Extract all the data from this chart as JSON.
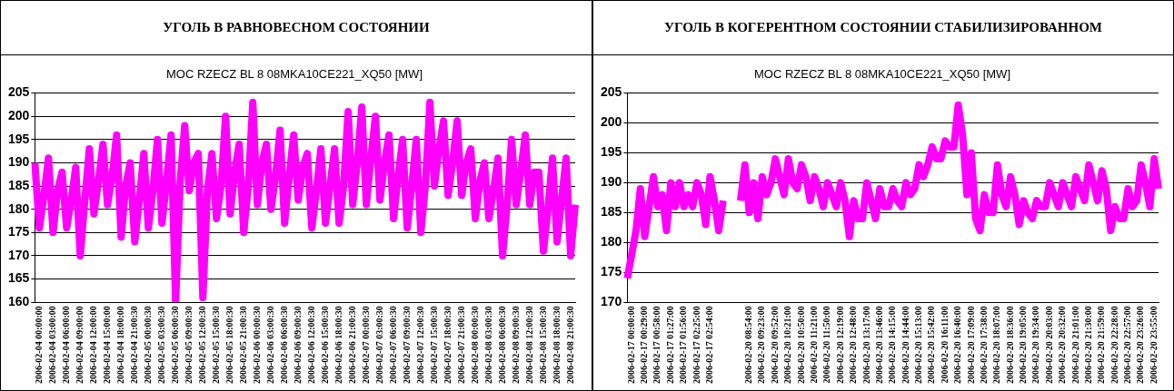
{
  "chart_data": [
    {
      "type": "line",
      "title": "УГОЛЬ В РАВНОВЕСНОМ СОСТОЯНИИ",
      "subtitle": "MOC RZECZ BL 8 08MKA10CE221_XQ50 [MW]",
      "categories": [
        null,
        "2006-02-04 00:00:00",
        null,
        null,
        "2006-02-04 03:00:00",
        null,
        null,
        "2006-02-04 06:00:00",
        null,
        null,
        "2006-02-04 09:00:00",
        null,
        null,
        "2006-02-04 12:00:00",
        null,
        null,
        "2006-02-04 15:00:00",
        null,
        null,
        "2006-02-04 18:00:00",
        null,
        null,
        "2006-02-04 21:00:30",
        null,
        null,
        "2006-02-05 00:00:30",
        null,
        null,
        "2006-02-05 03:00:30",
        null,
        null,
        "2006-02-05 06:00:30",
        null,
        null,
        "2006-02-05 09:00:30",
        null,
        null,
        "2006-02-05 12:00:30",
        null,
        null,
        "2006-02-05 15:00:30",
        null,
        null,
        "2006-02-05 18:00:30",
        null,
        null,
        "2006-02-05 21:00:30",
        null,
        null,
        "2006-02-06 00:00:30",
        null,
        null,
        "2006-02-06 03:00:30",
        null,
        null,
        "2006-02-06 06:00:30",
        null,
        null,
        "2006-02-06 09:00:30",
        null,
        null,
        "2006-02-06 12:00:30",
        null,
        null,
        "2006-02-06 15:00:30",
        null,
        null,
        "2006-02-06 18:00:30",
        null,
        null,
        "2006-02-06 21:00:30",
        null,
        null,
        "2006-02-07 00:00:30",
        null,
        null,
        "2006-02-07 03:00:30",
        null,
        null,
        "2006-02-07 06:00:30",
        null,
        null,
        "2006-02-07 09:00:30",
        null,
        null,
        "2006-02-07 12:00:30",
        null,
        null,
        "2006-02-07 15:00:30",
        null,
        null,
        "2006-02-07 18:00:30",
        null,
        null,
        "2006-02-07 21:00:30",
        null,
        null,
        "2006-02-08 00:00:30",
        null,
        null,
        "2006-02-08 03:00:30",
        null,
        null,
        "2006-02-08 06:00:30",
        null,
        null,
        "2006-02-08 09:00:30",
        null,
        null,
        "2006-02-08 12:00:30",
        null,
        null,
        "2006-02-08 15:00:30",
        null,
        null,
        "2006-02-08 18:00:30",
        null,
        null,
        "2006-02-08 21:00:30",
        null
      ],
      "series": [
        {
          "color": "#ff00ff",
          "values": [
            190,
            176,
            183,
            191,
            175,
            184,
            188,
            176,
            182,
            189,
            170,
            182,
            193,
            179,
            186,
            194,
            181,
            187,
            196,
            174,
            185,
            190,
            173,
            182,
            192,
            176,
            184,
            195,
            177,
            186,
            196,
            160,
            186,
            198,
            184,
            190,
            192,
            161,
            184,
            192,
            178,
            185,
            200,
            179,
            188,
            194,
            175,
            185,
            203,
            181,
            190,
            194,
            180,
            187,
            197,
            177,
            187,
            196,
            182,
            189,
            192,
            176,
            184,
            193,
            177,
            185,
            193,
            177,
            185,
            201,
            181,
            190,
            202,
            181,
            191,
            200,
            182,
            190,
            196,
            178,
            187,
            195,
            176,
            185,
            195,
            175,
            185,
            203,
            185,
            193,
            199,
            183,
            190,
            199,
            183,
            190,
            193,
            178,
            186,
            190,
            178,
            184,
            191,
            170,
            181,
            195,
            181,
            188,
            196,
            181,
            188,
            188,
            171,
            180,
            191,
            173,
            182,
            191,
            170,
            181
          ]
        }
      ],
      "ylim": [
        160,
        205
      ],
      "yticks": [
        160,
        165,
        170,
        175,
        180,
        185,
        190,
        195,
        200,
        205
      ],
      "grid": "y",
      "legend": false,
      "marker": "none"
    },
    {
      "type": "line",
      "title": "УГОЛЬ В КОГЕРЕНТНОМ СОСТОЯНИИ СТАБИЛИЗИРОВАННОМ",
      "subtitle": "MOC RZECZ BL 8 08MKA10CE221_XQ50 [MW]",
      "categories": [
        null,
        "2006-02-17 00:00:00",
        null,
        null,
        "2006-02-17 00:29:00",
        null,
        null,
        "2006-02-17 00:58:00",
        null,
        null,
        "2006-02-17 01:27:00",
        null,
        null,
        "2006-02-17 01:56:00",
        null,
        null,
        "2006-02-17 02:25:00",
        null,
        null,
        "2006-02-17 02:54:00",
        null,
        null,
        null,
        null,
        null,
        null,
        null,
        null,
        "2006-02-20 08:54:00",
        null,
        null,
        "2006-02-20 09:23:00",
        null,
        null,
        "2006-02-20 09:52:00",
        null,
        null,
        "2006-02-20 10:21:00",
        null,
        null,
        "2006-02-20 10:50:00",
        null,
        null,
        "2006-02-20 11:21:00",
        null,
        null,
        "2006-02-20 11:50:00",
        null,
        null,
        "2006-02-20 12:19:00",
        null,
        null,
        "2006-02-20 12:48:00",
        null,
        null,
        "2006-02-20 13:17:00",
        null,
        null,
        "2006-02-20 13:46:00",
        null,
        null,
        "2006-02-20 14:15:00",
        null,
        null,
        "2006-02-20 14:44:00",
        null,
        null,
        "2006-02-20 15:13:00",
        null,
        null,
        "2006-02-20 15:42:00",
        null,
        null,
        "2006-02-20 16:11:00",
        null,
        null,
        "2006-02-20 16:40:00",
        null,
        null,
        "2006-02-20 17:09:00",
        null,
        null,
        "2006-02-20 17:38:00",
        null,
        null,
        "2006-02-20 18:07:00",
        null,
        null,
        "2006-02-20 18:36:00",
        null,
        null,
        "2006-02-20 19:05:00",
        null,
        null,
        "2006-02-20 19:34:00",
        null,
        null,
        "2006-02-20 20:03:00",
        null,
        null,
        "2006-02-20 20:32:00",
        null,
        null,
        "2006-02-20 21:01:00",
        null,
        null,
        "2006-02-20 21:30:00",
        null,
        null,
        "2006-02-20 21:59:00",
        null,
        null,
        "2006-02-20 22:28:00",
        null,
        null,
        "2006-02-20 22:57:00",
        null,
        null,
        "2006-02-20 23:26:00",
        null,
        null,
        "2006-02-20 23:55:00",
        null
      ],
      "series": [
        {
          "color": "#ff00ff",
          "values": [
            174,
            178,
            182,
            189,
            181,
            186,
            191,
            186,
            188,
            182,
            190,
            186,
            190,
            186,
            188,
            186,
            190,
            188,
            183,
            191,
            187,
            182,
            187,
            null,
            null,
            null,
            187,
            193,
            185,
            190,
            184,
            191,
            188,
            190,
            194,
            191,
            188,
            194,
            190,
            189,
            193,
            191,
            187,
            191,
            189,
            186,
            190,
            188,
            186,
            190,
            187,
            181,
            187,
            184,
            184,
            190,
            187,
            184,
            189,
            186,
            186,
            189,
            187,
            186,
            190,
            188,
            189,
            193,
            191,
            193,
            196,
            194,
            194,
            197,
            196,
            196,
            203,
            198,
            188,
            195,
            184,
            182,
            188,
            185,
            185,
            193,
            188,
            186,
            191,
            188,
            183,
            187,
            185,
            184,
            187,
            186,
            186,
            190,
            188,
            186,
            190,
            188,
            186,
            191,
            189,
            187,
            193,
            190,
            187,
            192,
            189,
            182,
            186,
            184,
            184,
            189,
            186,
            187,
            193,
            190,
            186,
            194,
            189
          ]
        }
      ],
      "ylim": [
        170,
        205
      ],
      "yticks": [
        170,
        175,
        180,
        185,
        190,
        195,
        200,
        205
      ],
      "grid": "y",
      "legend": false,
      "marker": "none"
    }
  ]
}
